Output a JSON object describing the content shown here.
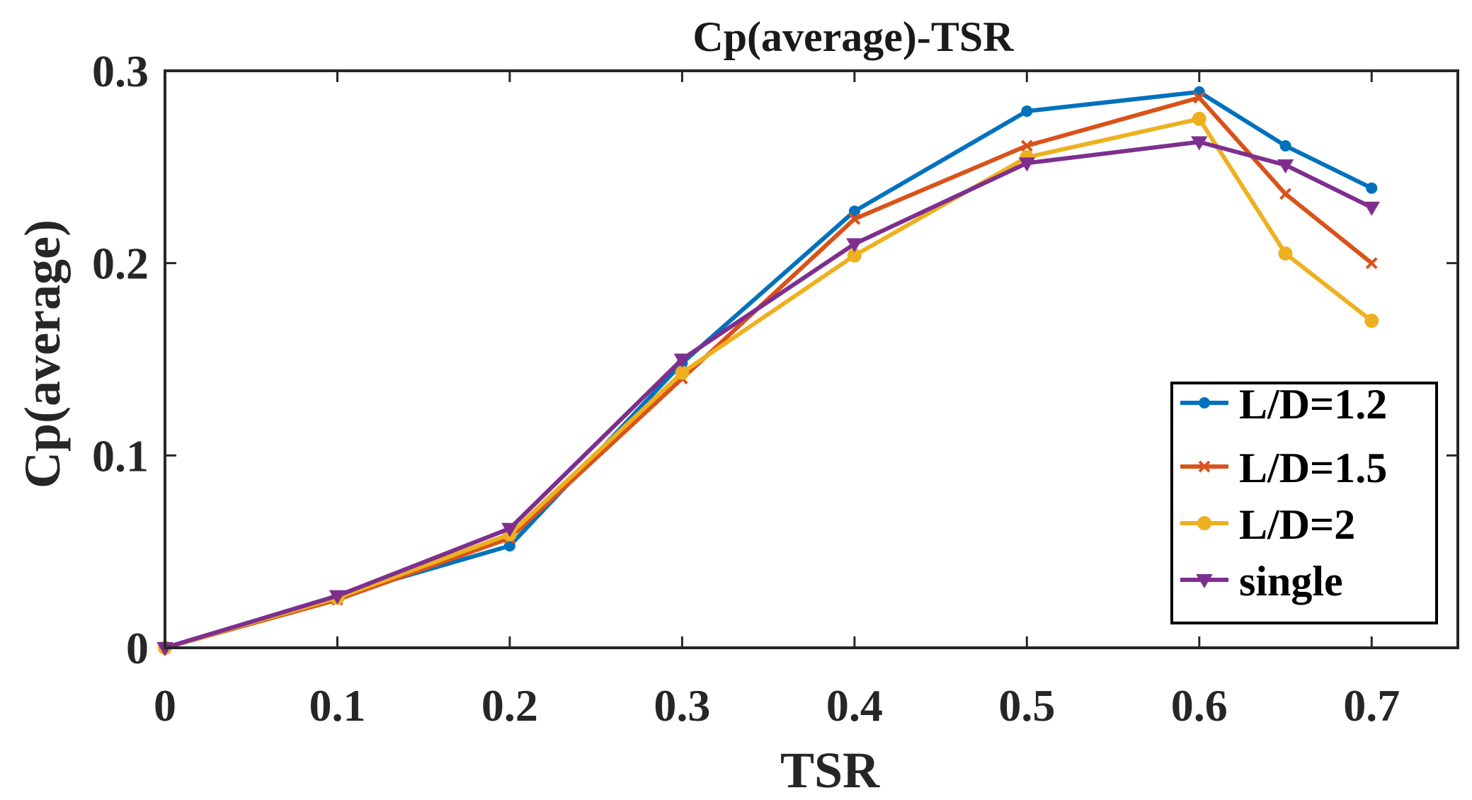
{
  "chart_data": {
    "type": "line",
    "title": "Cp(average)-TSR",
    "xlabel": "TSR",
    "ylabel": "Cp(average)",
    "xlim": [
      0,
      0.75
    ],
    "ylim": [
      0,
      0.3
    ],
    "xticks": [
      0,
      0.1,
      0.2,
      0.3,
      0.4,
      0.5,
      0.6,
      0.7
    ],
    "xtick_labels": [
      "0",
      "0.1",
      "0.2",
      "0.3",
      "0.4",
      "0.5",
      "0.6",
      "0.7"
    ],
    "yticks": [
      0,
      0.1,
      0.2,
      0.3
    ],
    "ytick_labels": [
      "0",
      "0.1",
      "0.2",
      "0.3"
    ],
    "grid": false,
    "legend_position": "bottom-right",
    "x": [
      0,
      0.1,
      0.2,
      0.3,
      0.4,
      0.5,
      0.6,
      0.65,
      0.7
    ],
    "series": [
      {
        "name": "L/D=1.2",
        "color": "#0072BD",
        "marker": "dot",
        "values": [
          0,
          0.027,
          0.053,
          0.148,
          0.227,
          0.279,
          0.289,
          0.261,
          0.239
        ]
      },
      {
        "name": "L/D=1.5",
        "color": "#D95319",
        "marker": "x",
        "values": [
          0,
          0.025,
          0.057,
          0.14,
          0.223,
          0.261,
          0.286,
          0.236,
          0.2
        ]
      },
      {
        "name": "L/D=2",
        "color": "#EDB120",
        "marker": "circle",
        "values": [
          0,
          0.026,
          0.059,
          0.143,
          0.204,
          0.255,
          0.275,
          0.205,
          0.17
        ]
      },
      {
        "name": "single",
        "color": "#7E2F8E",
        "marker": "triangle-down",
        "values": [
          0,
          0.027,
          0.062,
          0.15,
          0.21,
          0.252,
          0.263,
          0.251,
          0.229
        ]
      }
    ]
  }
}
